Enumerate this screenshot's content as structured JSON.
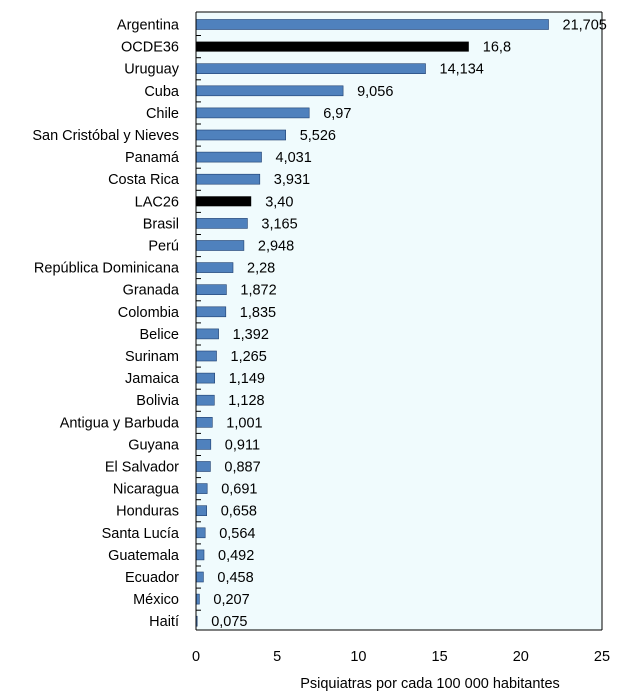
{
  "chart_data": {
    "type": "bar",
    "orientation": "horizontal",
    "xlabel": "Psiquiatras por cada 100 000 habitantes",
    "xlim": [
      0,
      25
    ],
    "xticks": [
      0,
      5,
      10,
      15,
      20,
      25
    ],
    "grid": false,
    "plot_background": "#f0fbfd",
    "bar_color": "#4f81bd",
    "highlight_color": "#000000",
    "categories": [
      "Argentina",
      "OCDE36",
      "Uruguay",
      "Cuba",
      "Chile",
      "San Cristóbal y Nieves",
      "Panamá",
      "Costa Rica",
      "LAC26",
      "Brasil",
      "Perú",
      "República Dominicana",
      "Granada",
      "Colombia",
      "Belice",
      "Surinam",
      "Jamaica",
      "Bolivia",
      "Antigua y Barbuda",
      "Guyana",
      "El Salvador",
      "Nicaragua",
      "Honduras",
      "Santa Lucía",
      "Guatemala",
      "Ecuador",
      "México",
      "Haití"
    ],
    "values": [
      21.705,
      16.8,
      14.134,
      9.056,
      6.97,
      5.526,
      4.031,
      3.931,
      3.4,
      3.165,
      2.948,
      2.28,
      1.872,
      1.835,
      1.392,
      1.265,
      1.149,
      1.128,
      1.001,
      0.911,
      0.887,
      0.691,
      0.658,
      0.564,
      0.492,
      0.458,
      0.207,
      0.075
    ],
    "value_labels": [
      "21,705",
      "16,8",
      "14,134",
      "9,056",
      "6,97",
      "5,526",
      "4,031",
      "3,931",
      "3,40",
      "3,165",
      "2,948",
      "2,28",
      "1,872",
      "1,835",
      "1,392",
      "1,265",
      "1,149",
      "1,128",
      "1,001",
      "0,911",
      "0,887",
      "0,691",
      "0,658",
      "0,564",
      "0,492",
      "0,458",
      "0,207",
      "0,075"
    ],
    "highlighted": [
      "OCDE36",
      "LAC26"
    ]
  }
}
